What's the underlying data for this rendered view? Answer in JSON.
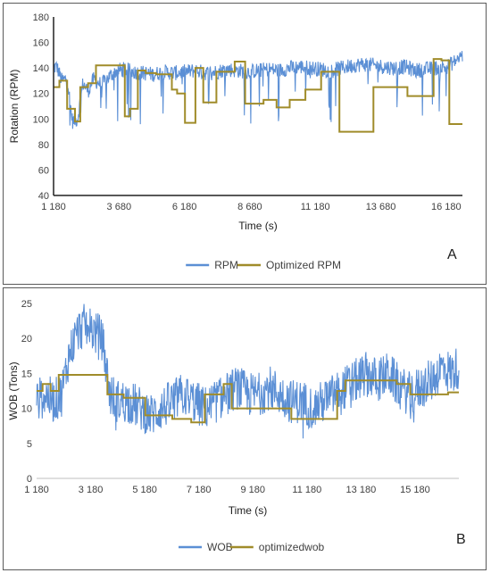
{
  "chart_data": [
    {
      "type": "line",
      "panel_label": "A",
      "xlabel": "Time (s)",
      "ylabel": "Rotation (RPM)",
      "xlim": [
        1180,
        16800
      ],
      "ylim": [
        40,
        180
      ],
      "x_ticks": [
        1180,
        3680,
        6180,
        8680,
        11180,
        13680,
        16180
      ],
      "x_tick_labels": [
        "1 180",
        "3 680",
        "6 180",
        "8 680",
        "11 180",
        "13 680",
        "16 180"
      ],
      "y_ticks": [
        40,
        60,
        80,
        100,
        120,
        140,
        160,
        180
      ],
      "y_tick_labels": [
        "40",
        "60",
        "80",
        "100",
        "120",
        "140",
        "160",
        "180"
      ],
      "legend_position": "bottom",
      "grid": false,
      "series": [
        {
          "name": "RPM",
          "color": "#5b8fd5",
          "style": "noisy",
          "x": [
            1180,
            1300,
            1500,
            1700,
            1900,
            2100,
            2300,
            2500,
            2700,
            3000,
            3300,
            3600,
            3900,
            4200,
            4600,
            5000,
            5400,
            5800,
            6200,
            6600,
            7000,
            7400,
            7800,
            8200,
            8600,
            9000,
            9400,
            9800,
            10200,
            10600,
            11000,
            11400,
            11800,
            12200,
            12600,
            13000,
            13400,
            13800,
            14200,
            14600,
            15000,
            15400,
            15800,
            16200,
            16500,
            16800
          ],
          "values": [
            140,
            141,
            130,
            132,
            98,
            100,
            128,
            122,
            131,
            127,
            133,
            138,
            139,
            137,
            136,
            135,
            137,
            136,
            137,
            138,
            136,
            137,
            139,
            138,
            137,
            138,
            139,
            138,
            140,
            141,
            140,
            139,
            138,
            140,
            142,
            143,
            142,
            141,
            140,
            141,
            138,
            139,
            140,
            141,
            145,
            150
          ],
          "spike_down": 0.28,
          "noise": 6
        },
        {
          "name": "Optimized RPM",
          "color": "#a08c2a",
          "style": "step",
          "x": [
            1180,
            1400,
            1700,
            2000,
            2200,
            2500,
            2800,
            3500,
            3900,
            4100,
            4400,
            4700,
            5100,
            5700,
            5900,
            6200,
            6600,
            6900,
            7400,
            8100,
            8500,
            9200,
            9700,
            10200,
            10800,
            11400,
            12100,
            12700,
            13400,
            14200,
            14700,
            15300,
            15700,
            16000,
            16300,
            16800
          ],
          "values": [
            125,
            130,
            108,
            98,
            125,
            128,
            142,
            142,
            102,
            108,
            138,
            136,
            135,
            123,
            120,
            97,
            140,
            113,
            137,
            145,
            112,
            115,
            109,
            115,
            123,
            137,
            90,
            90,
            125,
            125,
            118,
            118,
            147,
            146,
            96,
            96
          ]
        }
      ]
    },
    {
      "type": "line",
      "panel_label": "B",
      "xlabel": "Time (s)",
      "ylabel": "WOB (Tons)",
      "xlim": [
        1180,
        16800
      ],
      "ylim": [
        0,
        25
      ],
      "x_ticks": [
        1180,
        3180,
        5180,
        7180,
        9180,
        11180,
        13180,
        15180
      ],
      "x_tick_labels": [
        "1 180",
        "3 180",
        "5 180",
        "7 180",
        "9 180",
        "11 180",
        "13 180",
        "15 180"
      ],
      "y_ticks": [
        0,
        5,
        10,
        15,
        20,
        25
      ],
      "y_tick_labels": [
        "0",
        "5",
        "10",
        "15",
        "20",
        "25"
      ],
      "legend_position": "bottom",
      "grid": false,
      "series": [
        {
          "name": "WOB",
          "color": "#5b8fd5",
          "style": "noisy",
          "x": [
            1180,
            1500,
            1800,
            2100,
            2400,
            2700,
            3000,
            3300,
            3600,
            3900,
            4200,
            4600,
            5000,
            5400,
            5800,
            6200,
            6600,
            7000,
            7400,
            7800,
            8200,
            8600,
            9000,
            9400,
            9800,
            10200,
            10600,
            11000,
            11400,
            11800,
            12200,
            12600,
            13000,
            13400,
            13800,
            14200,
            14600,
            15000,
            15400,
            15800,
            16200,
            16500,
            16800
          ],
          "values": [
            11,
            12,
            11,
            12,
            18,
            21,
            22,
            21,
            20,
            12,
            11,
            11,
            10,
            9,
            10,
            11,
            12,
            11,
            10,
            11,
            12,
            13,
            12,
            12,
            13,
            12,
            11,
            11,
            10,
            11,
            12,
            13,
            14,
            15,
            14,
            15,
            13,
            12,
            13,
            14,
            16,
            15,
            16
          ],
          "spike_down": 0.12,
          "noise": 3.2
        },
        {
          "name": "optimizedwob",
          "color": "#a08c2a",
          "style": "step",
          "x": [
            1180,
            1400,
            1700,
            2000,
            2400,
            3500,
            3800,
            4400,
            5200,
            6200,
            6900,
            7400,
            8100,
            8400,
            9800,
            10600,
            11600,
            12300,
            12600,
            13600,
            14500,
            15000,
            16400,
            16800
          ],
          "values": [
            12.5,
            13.5,
            12.5,
            14.8,
            14.8,
            14.8,
            12,
            11.5,
            9,
            8.5,
            8,
            12,
            13.5,
            10,
            10,
            8.5,
            8.5,
            12.5,
            14,
            14,
            13.5,
            12,
            12.3,
            12.3
          ]
        }
      ]
    }
  ]
}
